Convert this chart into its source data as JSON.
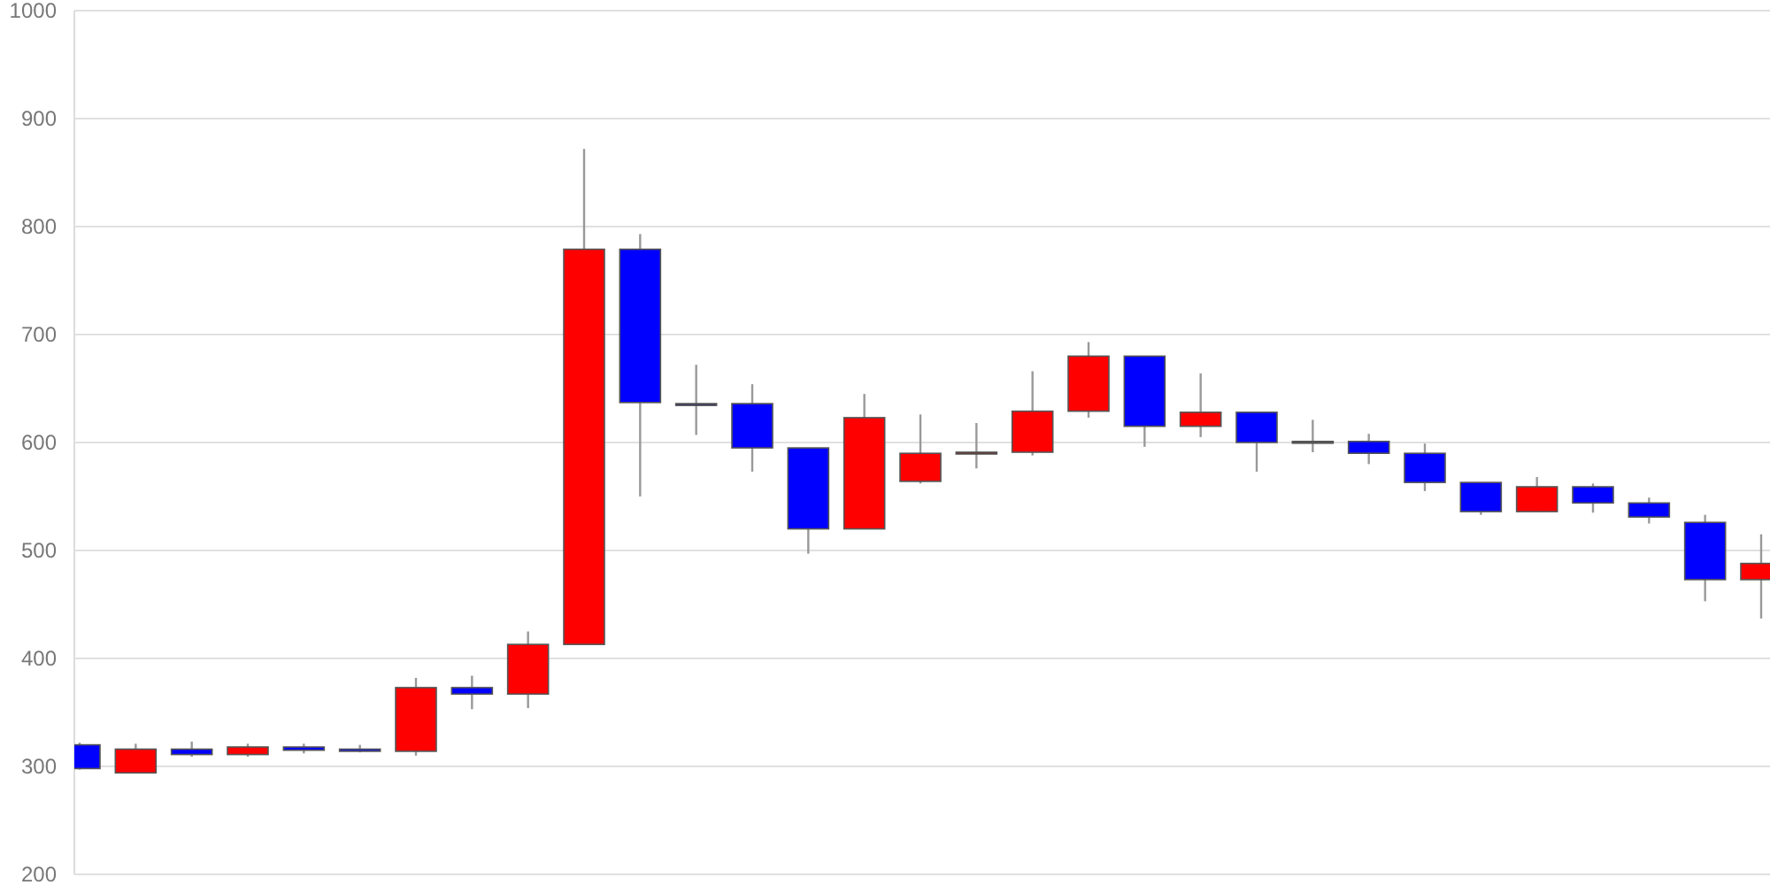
{
  "chart_data": {
    "type": "candlestick",
    "categories": [
      null,
      null,
      null,
      null,
      null,
      null,
      null,
      null,
      null,
      null,
      null,
      null,
      null,
      null,
      null,
      null,
      null,
      null,
      null,
      null,
      null,
      null,
      null,
      null,
      null,
      null,
      null,
      null,
      null,
      null,
      null
    ],
    "ohlc": [
      [
        320,
        322,
        297,
        298
      ],
      [
        294,
        321,
        294,
        316
      ],
      [
        316,
        323,
        309,
        311
      ],
      [
        311,
        321,
        309,
        318
      ],
      [
        318,
        321,
        312,
        315
      ],
      [
        316,
        320,
        313,
        314
      ],
      [
        314,
        382,
        310,
        373
      ],
      [
        373,
        384,
        353,
        367
      ],
      [
        367,
        425,
        354,
        413
      ],
      [
        413,
        872,
        413,
        779
      ],
      [
        779,
        793,
        550,
        637
      ],
      [
        636,
        672,
        607,
        636
      ],
      [
        636,
        654,
        573,
        595
      ],
      [
        595,
        595,
        497,
        520
      ],
      [
        520,
        645,
        520,
        623
      ],
      [
        564,
        626,
        562,
        590
      ],
      [
        590,
        618,
        576,
        591
      ],
      [
        591,
        666,
        588,
        629
      ],
      [
        629,
        693,
        623,
        680
      ],
      [
        680,
        680,
        596,
        615
      ],
      [
        615,
        664,
        605,
        628
      ],
      [
        628,
        628,
        573,
        600
      ],
      [
        601,
        621,
        591,
        600
      ],
      [
        601,
        608,
        580,
        590
      ],
      [
        590,
        599,
        555,
        563
      ],
      [
        563,
        563,
        533,
        536
      ],
      [
        536,
        568,
        536,
        559
      ],
      [
        559,
        562,
        535,
        544
      ],
      [
        544,
        549,
        525,
        531
      ],
      [
        526,
        533,
        453,
        473
      ],
      [
        473,
        515,
        437,
        488
      ]
    ],
    "colors": [
      "#0000ff",
      "#ff0000",
      "#0000ff",
      "#ff0000",
      "#0000ff",
      "#0000ff",
      "#ff0000",
      "#0000ff",
      "#ff0000",
      "#ff0000",
      "#0000ff",
      "#000080",
      "#0000ff",
      "#0000ff",
      "#ff0000",
      "#ff0000",
      "#800000",
      "#ff0000",
      "#ff0000",
      "#0000ff",
      "#ff0000",
      "#0000ff",
      "#555555",
      "#0000ff",
      "#0000ff",
      "#0000ff",
      "#ff0000",
      "#0000ff",
      "#0000ff",
      "#0000ff",
      "#ff0000"
    ],
    "ylim": [
      200,
      1000
    ],
    "yticks": [
      200,
      300,
      400,
      500,
      600,
      700,
      800,
      900,
      1000
    ],
    "grid": "y"
  }
}
